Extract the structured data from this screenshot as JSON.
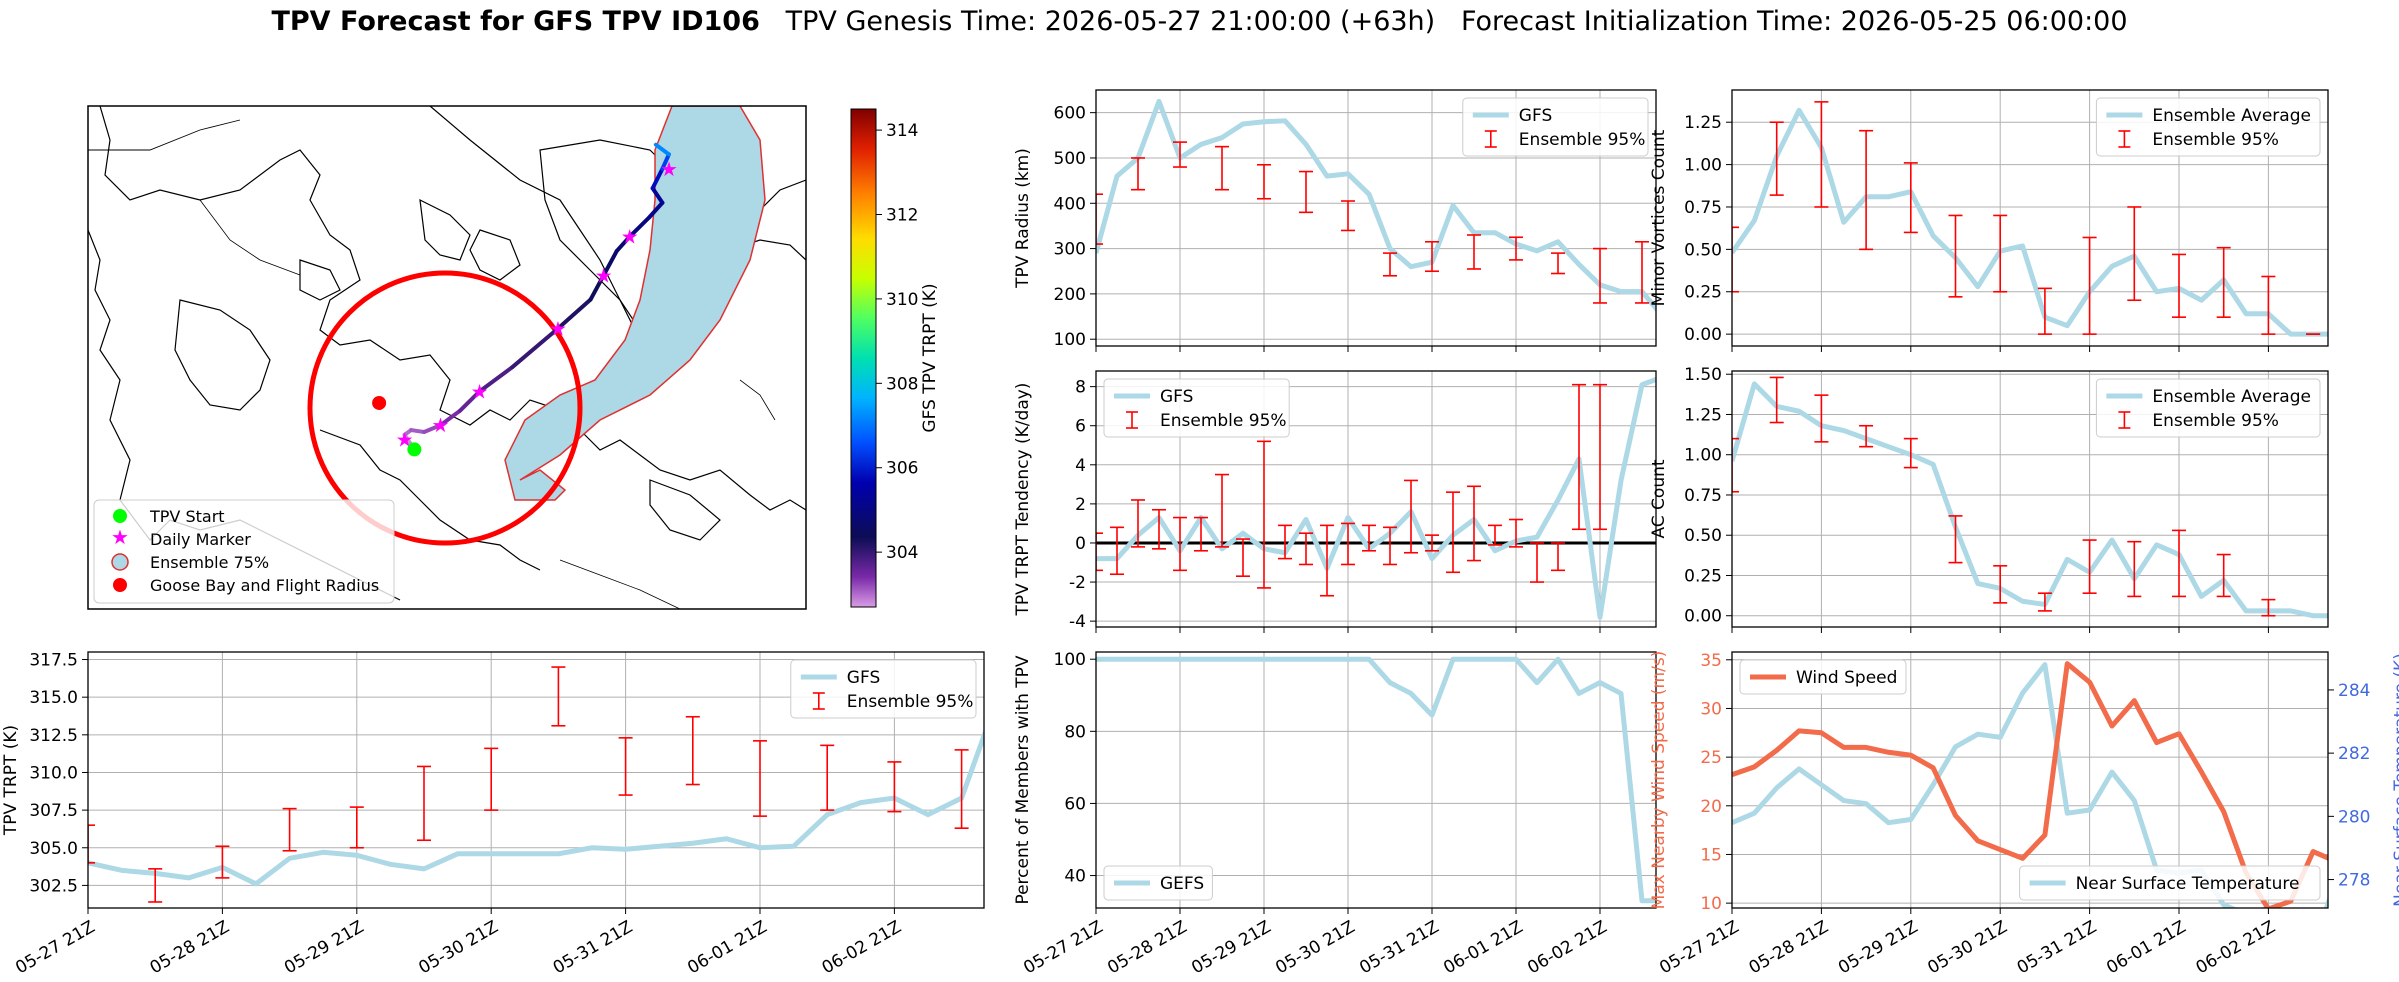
{
  "figure": {
    "title_bold": "TPV Forecast for GFS TPV ID106",
    "title_genesis": "TPV Genesis Time: 2026-05-27 21:00:00 (+63h)",
    "title_init": "Forecast Initialization Time: 2026-05-25 06:00:00"
  },
  "colors": {
    "gfs": "#add8e6",
    "ensemble": "#ff0000",
    "wind": "#f26b4a",
    "temp_axis": "#4169e1",
    "start": "#00ff00",
    "marker": "#ff00ff",
    "goose": "#ff0000"
  },
  "map": {
    "legend": [
      "TPV Start",
      "Daily Marker",
      "Ensemble 75%",
      "Goose Bay and Flight Radius"
    ],
    "colorbar_label": "GFS TPV TRPT (K)",
    "colorbar_ticks": [
      304,
      306,
      308,
      310,
      312,
      314
    ],
    "colorbar_range": [
      302.7,
      314.5
    ],
    "track": [
      {
        "lon": -55.0,
        "lat": 48.5,
        "trpt": 302.8
      },
      {
        "lon": -56.5,
        "lat": 50.0,
        "trpt": 303.0
      },
      {
        "lon": -55.5,
        "lat": 50.5,
        "trpt": 303.1
      },
      {
        "lon": -53.5,
        "lat": 50.3,
        "trpt": 303.2
      },
      {
        "lon": -51.0,
        "lat": 51.0,
        "trpt": 303.4
      },
      {
        "lon": -48.0,
        "lat": 52.5,
        "trpt": 303.6
      },
      {
        "lon": -45.0,
        "lat": 54.5,
        "trpt": 303.8
      },
      {
        "lon": -40.0,
        "lat": 57.0,
        "trpt": 304.0
      },
      {
        "lon": -33.0,
        "lat": 61.0,
        "trpt": 304.2
      },
      {
        "lon": -28.0,
        "lat": 64.0,
        "trpt": 304.4
      },
      {
        "lon": -26.0,
        "lat": 66.5,
        "trpt": 304.6
      },
      {
        "lon": -24.0,
        "lat": 69.0,
        "trpt": 304.8
      },
      {
        "lon": -22.0,
        "lat": 70.5,
        "trpt": 305.0
      },
      {
        "lon": -19.0,
        "lat": 72.5,
        "trpt": 305.1
      },
      {
        "lon": -17.0,
        "lat": 74.0,
        "trpt": 305.3
      },
      {
        "lon": -18.5,
        "lat": 75.5,
        "trpt": 305.8
      },
      {
        "lon": -17.0,
        "lat": 77.5,
        "trpt": 306.4
      },
      {
        "lon": -16.0,
        "lat": 79.0,
        "trpt": 307.2
      },
      {
        "lon": -18.0,
        "lat": 80.0,
        "trpt": 307.8
      }
    ],
    "daily_markers": [
      {
        "lon": -56.5,
        "lat": 49.5
      },
      {
        "lon": -51.0,
        "lat": 51.0
      },
      {
        "lon": -45.0,
        "lat": 54.5
      },
      {
        "lon": -33.0,
        "lat": 61.0
      },
      {
        "lon": -26.0,
        "lat": 66.5
      },
      {
        "lon": -22.0,
        "lat": 70.5
      },
      {
        "lon": -16.0,
        "lat": 77.5
      }
    ],
    "start": {
      "lon": -55.0,
      "lat": 48.5
    },
    "goose_bay": {
      "lon": -60.4,
      "lat": 53.3
    }
  },
  "chart_data": [
    {
      "id": "radius",
      "type": "line",
      "ylabel": "TPV Radius (km)",
      "ylim": [
        85,
        650
      ],
      "yticks": [
        100,
        200,
        300,
        400,
        500,
        600
      ],
      "legend": [
        "GFS",
        "Ensemble 95%"
      ],
      "legend_loc": "upper right",
      "x_hours": [
        0,
        6,
        12,
        18,
        24,
        30,
        36,
        42,
        48,
        54,
        60,
        66,
        72,
        78,
        84,
        90,
        96,
        102,
        108,
        114,
        120,
        126,
        132,
        138,
        144,
        150,
        156,
        162,
        168,
        174,
        180,
        186
      ],
      "gfs": [
        290,
        460,
        500,
        625,
        500,
        530,
        545,
        575,
        580,
        582,
        530,
        460,
        465,
        420,
        300,
        260,
        270,
        395,
        335,
        335,
        310,
        295,
        315,
        265,
        220,
        205,
        205,
        150,
        110,
        90,
        90,
        90
      ],
      "ens_hours": [
        0,
        12,
        24,
        36,
        48,
        60,
        72,
        84,
        96,
        108,
        120,
        132,
        144,
        156
      ],
      "ens_low": [
        310,
        430,
        480,
        430,
        410,
        380,
        340,
        240,
        250,
        255,
        275,
        245,
        180,
        180
      ],
      "ens_high": [
        420,
        500,
        535,
        525,
        485,
        470,
        405,
        290,
        315,
        330,
        325,
        290,
        300,
        315
      ]
    },
    {
      "id": "minor_vortices",
      "type": "line",
      "ylabel": "Minor Vortices Count",
      "ylim": [
        -0.07,
        1.44
      ],
      "yticks": [
        0.0,
        0.25,
        0.5,
        0.75,
        1.0,
        1.25
      ],
      "legend": [
        "Ensemble Average",
        "Ensemble 95%"
      ],
      "legend_loc": "upper right",
      "x_hours": [
        0,
        6,
        12,
        18,
        24,
        30,
        36,
        42,
        48,
        54,
        60,
        66,
        72,
        78,
        84,
        90,
        96,
        102,
        108,
        114,
        120,
        126,
        132,
        138,
        144,
        150,
        156,
        162,
        168,
        174,
        180,
        186
      ],
      "gfs": [
        0.48,
        0.67,
        1.05,
        1.32,
        1.1,
        0.66,
        0.81,
        0.81,
        0.84,
        0.58,
        0.45,
        0.28,
        0.49,
        0.52,
        0.1,
        0.05,
        0.25,
        0.4,
        0.46,
        0.25,
        0.27,
        0.2,
        0.32,
        0.12,
        0.12,
        0.0,
        0.0,
        0.0,
        0.0,
        0.0,
        0.0,
        0.0
      ],
      "ens_hours": [
        0,
        12,
        24,
        36,
        48,
        60,
        72,
        84,
        96,
        108,
        120,
        132,
        144,
        156
      ],
      "ens_low": [
        0.25,
        0.82,
        0.75,
        0.5,
        0.6,
        0.22,
        0.25,
        0.0,
        0.0,
        0.2,
        0.1,
        0.1,
        0.0,
        0.0
      ],
      "ens_high": [
        0.63,
        1.25,
        1.37,
        1.2,
        1.01,
        0.7,
        0.7,
        0.27,
        0.57,
        0.75,
        0.47,
        0.51,
        0.34,
        0.0
      ]
    },
    {
      "id": "trpt_tendency",
      "type": "line",
      "ylabel": "TPV TRPT Tendency (K/day)",
      "ylim": [
        -4.3,
        8.8
      ],
      "yticks": [
        -4,
        -2,
        0,
        2,
        4,
        6,
        8
      ],
      "legend": [
        "GFS",
        "Ensemble 95%"
      ],
      "legend_loc": "upper left",
      "x_hours": [
        0,
        6,
        12,
        18,
        24,
        30,
        36,
        42,
        48,
        54,
        60,
        66,
        72,
        78,
        84,
        90,
        96,
        102,
        108,
        114,
        120,
        126,
        132,
        138,
        144,
        150,
        156,
        162,
        168,
        174,
        180,
        186
      ],
      "gfs": [
        -0.8,
        -0.8,
        0.4,
        1.3,
        -0.4,
        1.3,
        -0.3,
        0.5,
        -0.3,
        -0.5,
        1.2,
        -1.3,
        1.3,
        -0.3,
        0.5,
        1.6,
        -0.8,
        0.4,
        1.2,
        -0.4,
        0.1,
        0.3,
        2.2,
        4.3,
        -3.8,
        3.2,
        8.1,
        8.5,
        8.5,
        8.5,
        8.5,
        8.5
      ],
      "ens_hours": [
        0,
        6,
        12,
        18,
        24,
        30,
        36,
        42,
        48,
        54,
        60,
        66,
        72,
        78,
        84,
        90,
        96,
        102,
        108,
        114,
        120,
        126,
        132,
        138,
        144
      ],
      "ens_low": [
        -1.4,
        -1.6,
        -0.2,
        -0.3,
        -1.4,
        -0.4,
        -0.2,
        -1.7,
        -2.3,
        -0.8,
        -1.1,
        -2.7,
        -1.1,
        -0.4,
        -1.1,
        -0.5,
        -0.4,
        -1.5,
        -0.9,
        -0.1,
        -0.2,
        -2.0,
        -1.4,
        0.7,
        0.7
      ],
      "ens_high": [
        0.5,
        0.8,
        2.2,
        1.7,
        1.3,
        1.3,
        3.5,
        0.2,
        5.2,
        0.9,
        0.5,
        0.9,
        1.0,
        0.9,
        0.8,
        3.2,
        0.4,
        2.6,
        2.9,
        0.9,
        1.2,
        0.0,
        0.0,
        8.1,
        8.1
      ]
    },
    {
      "id": "ac_count",
      "type": "line",
      "ylabel": "AC Count",
      "ylim": [
        -0.07,
        1.52
      ],
      "yticks": [
        0.0,
        0.25,
        0.5,
        0.75,
        1.0,
        1.25,
        1.5
      ],
      "legend": [
        "Ensemble Average",
        "Ensemble 95%"
      ],
      "legend_loc": "upper right",
      "x_hours": [
        0,
        6,
        12,
        18,
        24,
        30,
        36,
        42,
        48,
        54,
        60,
        66,
        72,
        78,
        84,
        90,
        96,
        102,
        108,
        114,
        120,
        126,
        132,
        138,
        144,
        150,
        156,
        162,
        168,
        174,
        180,
        186
      ],
      "gfs": [
        0.96,
        1.44,
        1.3,
        1.27,
        1.18,
        1.15,
        1.1,
        1.05,
        1.0,
        0.94,
        0.55,
        0.2,
        0.17,
        0.09,
        0.07,
        0.35,
        0.27,
        0.47,
        0.23,
        0.44,
        0.38,
        0.12,
        0.22,
        0.03,
        0.03,
        0.03,
        0.0,
        0.0,
        0.0,
        0.0,
        0.0,
        0.0
      ],
      "ens_hours": [
        0,
        12,
        24,
        36,
        48,
        60,
        72,
        84,
        96,
        108,
        120,
        132,
        144
      ],
      "ens_low": [
        0.77,
        1.2,
        1.08,
        1.05,
        0.92,
        0.33,
        0.08,
        0.03,
        0.14,
        0.12,
        0.12,
        0.12,
        0.0
      ],
      "ens_high": [
        1.1,
        1.48,
        1.37,
        1.18,
        1.1,
        0.62,
        0.31,
        0.14,
        0.47,
        0.46,
        0.53,
        0.38,
        0.1
      ]
    },
    {
      "id": "trpt",
      "type": "line",
      "ylabel": "TPV TRPT (K)",
      "ylim": [
        301.0,
        318.0
      ],
      "yticks": [
        302.5,
        305.0,
        307.5,
        310.0,
        312.5,
        315.0,
        317.5
      ],
      "legend": [
        "GFS",
        "Ensemble 95%"
      ],
      "legend_loc": "upper right",
      "x_hours": [
        0,
        6,
        12,
        18,
        24,
        30,
        36,
        42,
        48,
        54,
        60,
        66,
        72,
        78,
        84,
        90,
        96,
        102,
        108,
        114,
        120,
        126,
        132,
        138,
        144,
        150,
        156,
        162,
        168,
        174,
        180,
        186
      ],
      "gfs": [
        304.0,
        303.5,
        303.3,
        303.0,
        303.7,
        302.6,
        304.3,
        304.7,
        304.5,
        303.9,
        303.6,
        304.6,
        304.6,
        304.6,
        304.6,
        305.0,
        304.9,
        305.1,
        305.3,
        305.6,
        305.0,
        305.1,
        307.2,
        308.0,
        308.3,
        307.2,
        308.3,
        314.5,
        314.5,
        314.5,
        314.5,
        314.5
      ],
      "ens_hours": [
        0,
        12,
        24,
        36,
        48,
        60,
        72,
        84,
        96,
        108,
        120,
        132,
        144,
        156
      ],
      "ens_low": [
        304.0,
        301.4,
        303.0,
        304.8,
        305.0,
        305.5,
        307.5,
        313.1,
        308.5,
        309.2,
        307.1,
        307.5,
        307.4,
        306.3
      ],
      "ens_high": [
        306.5,
        303.6,
        305.1,
        307.6,
        307.7,
        310.4,
        311.6,
        317.0,
        312.3,
        313.7,
        312.1,
        311.8,
        310.7,
        311.5
      ]
    },
    {
      "id": "percent_members",
      "type": "line",
      "ylabel": "Percent of Members with TPV",
      "ylim": [
        31,
        102
      ],
      "yticks": [
        40,
        60,
        80,
        100
      ],
      "legend": [
        "GEFS"
      ],
      "legend_loc": "lower left",
      "x_hours": [
        0,
        6,
        12,
        18,
        24,
        30,
        36,
        42,
        48,
        54,
        60,
        66,
        72,
        78,
        84,
        90,
        96,
        102,
        108,
        114,
        120,
        126,
        132,
        138,
        144,
        150,
        156,
        162,
        168,
        174,
        180,
        186
      ],
      "gfs": [
        100,
        100,
        100,
        100,
        100,
        100,
        100,
        100,
        100,
        100,
        100,
        100,
        100,
        100,
        93.5,
        90.5,
        84.5,
        100,
        100,
        100,
        100,
        93.5,
        100,
        90.5,
        93.5,
        90.5,
        33,
        33,
        33,
        33,
        33,
        33
      ]
    },
    {
      "id": "wind_temp",
      "type": "line",
      "ylabel": "Max Nearby Wind Speed (m/s)",
      "ylabel_right": "Near Surface Temperature (K)",
      "ylim": [
        9.5,
        35.8
      ],
      "yticks": [
        10,
        15,
        20,
        25,
        30,
        35
      ],
      "ylim_right": [
        277.1,
        285.2
      ],
      "yticks_right": [
        278,
        280,
        282,
        284
      ],
      "legend": [
        "Wind Speed"
      ],
      "legend_right": [
        "Near Surface Temperature"
      ],
      "x_hours": [
        0,
        6,
        12,
        18,
        24,
        30,
        36,
        42,
        48,
        54,
        60,
        66,
        72,
        78,
        84,
        90,
        96,
        102,
        108,
        114,
        120,
        126,
        132,
        138,
        144,
        150,
        156,
        162,
        168,
        174,
        180,
        186
      ],
      "wind": [
        23.2,
        24.0,
        25.7,
        27.7,
        27.5,
        26.0,
        26.0,
        25.5,
        25.2,
        23.9,
        19.0,
        16.4,
        15.5,
        14.6,
        17.0,
        34.6,
        32.7,
        28.2,
        30.8,
        26.5,
        27.4,
        23.5,
        19.4,
        13.1,
        9.4,
        10.2,
        15.3,
        14.3,
        31.0,
        31.0,
        31.0,
        31.0
      ],
      "temp": [
        279.8,
        280.1,
        280.9,
        281.5,
        281.0,
        280.5,
        280.4,
        279.8,
        279.9,
        281.0,
        282.2,
        282.6,
        282.5,
        283.9,
        284.8,
        280.1,
        280.2,
        281.4,
        280.5,
        278.3,
        278.2,
        278.3,
        277.2,
        276.9,
        277.1,
        275.9,
        275.9,
        277.9,
        280.7,
        280.7,
        280.7,
        280.7
      ]
    }
  ],
  "time_axis": {
    "tick_labels": [
      "05-27 21Z",
      "05-28 21Z",
      "05-29 21Z",
      "05-30 21Z",
      "05-31 21Z",
      "06-01 21Z",
      "06-02 21Z"
    ],
    "tick_hours": [
      0,
      24,
      48,
      72,
      96,
      120,
      144
    ],
    "x_range_hours": [
      0,
      160
    ]
  }
}
